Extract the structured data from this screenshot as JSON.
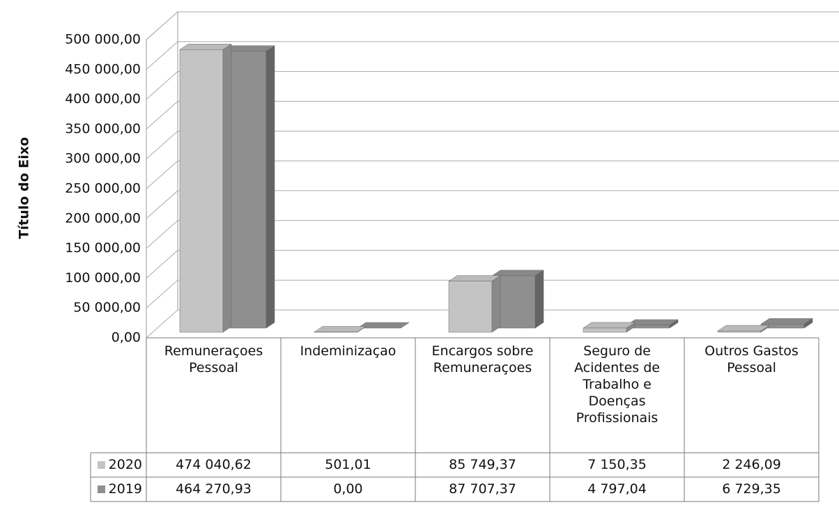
{
  "chart_data": {
    "type": "bar3d",
    "y_axis_label": "Título do Eixo",
    "categories": [
      "Remuneraçoes Pessoal",
      "Indeminizaçao",
      "Encargos sobre Remuneraçoes",
      "Seguro de Acidentes de Trabalho e Doenças Profissionais",
      "Outros Gastos Pessoal"
    ],
    "series": [
      {
        "name": "2020",
        "color": "#c4c4c4",
        "values": [
          474040.62,
          501.01,
          85749.37,
          7150.35,
          2246.09
        ],
        "value_labels": [
          "474 040,62",
          "501,01",
          "85 749,37",
          "7 150,35",
          "2 246,09"
        ]
      },
      {
        "name": "2019",
        "color": "#8f8f8f",
        "values": [
          464270.93,
          0,
          87707.37,
          4797.04,
          6729.35
        ],
        "value_labels": [
          "464 270,93",
          "0,00",
          "87 707,37",
          "4 797,04",
          "6 729,35"
        ]
      }
    ],
    "ylim": [
      0,
      500000
    ],
    "yticks": [
      {
        "value": 0,
        "label": "0,00"
      },
      {
        "value": 50000,
        "label": "50 000,00"
      },
      {
        "value": 100000,
        "label": "100 000,00"
      },
      {
        "value": 150000,
        "label": "150 000,00"
      },
      {
        "value": 200000,
        "label": "200 000,00"
      },
      {
        "value": 250000,
        "label": "250 000,00"
      },
      {
        "value": 300000,
        "label": "300 000,00"
      },
      {
        "value": 350000,
        "label": "350 000,00"
      },
      {
        "value": 400000,
        "label": "400 000,00"
      },
      {
        "value": 450000,
        "label": "450 000,00"
      },
      {
        "value": 500000,
        "label": "500 000,00"
      }
    ],
    "grid": true
  }
}
